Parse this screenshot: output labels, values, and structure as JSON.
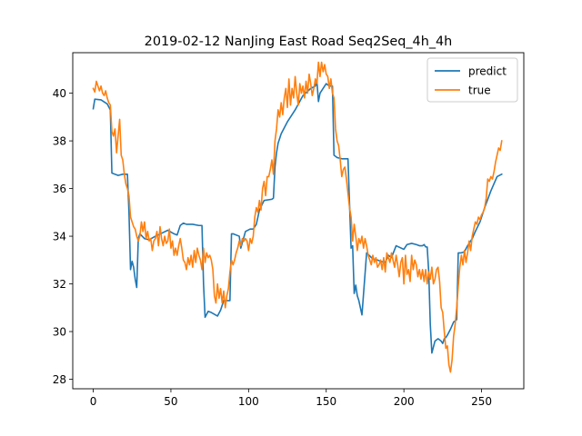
{
  "chart_data": {
    "type": "line",
    "title": "2019-02-12 NanJing East Road Seq2Seq_4h_4h",
    "xlabel": "",
    "ylabel": "",
    "xlim": [
      -13.2,
      277.2
    ],
    "ylim": [
      27.6,
      41.7
    ],
    "xticks": [
      0,
      50,
      100,
      150,
      200,
      250
    ],
    "yticks": [
      28,
      30,
      32,
      34,
      36,
      38,
      40
    ],
    "grid": false,
    "legend": "top-right",
    "series": [
      {
        "name": "predict",
        "color": "#1f77b4",
        "x": [
          0,
          1,
          5,
          9,
          11,
          12,
          16,
          19,
          22,
          23,
          24,
          25,
          26,
          27,
          28,
          29,
          30,
          33,
          36,
          40,
          48,
          52,
          54,
          56,
          58,
          60,
          64,
          68,
          70,
          71,
          72,
          74,
          76,
          80,
          82,
          84,
          86,
          88,
          89,
          90,
          94,
          95,
          98,
          101,
          103,
          105,
          107,
          110,
          115,
          116,
          117,
          118,
          119,
          121,
          125,
          130,
          135,
          140,
          143,
          144,
          145,
          146,
          148,
          150,
          152,
          154,
          155,
          156,
          157,
          160,
          164,
          166,
          167,
          168,
          169,
          170,
          171,
          172,
          173,
          176,
          180,
          183,
          185,
          188,
          190,
          192,
          195,
          200,
          202,
          205,
          208,
          210,
          212,
          213,
          214,
          215,
          216,
          217,
          218,
          220,
          222,
          224,
          225,
          226,
          227,
          228,
          230,
          232,
          233,
          234,
          235,
          237,
          239,
          241,
          244,
          246,
          249,
          252,
          256,
          260,
          263
        ],
        "y": [
          39.35,
          39.75,
          39.72,
          39.55,
          39.3,
          36.65,
          36.55,
          36.6,
          36.6,
          35.0,
          32.6,
          32.95,
          32.7,
          32.2,
          31.85,
          33.9,
          34.1,
          33.9,
          33.85,
          34.0,
          34.25,
          34.1,
          34.05,
          34.45,
          34.55,
          34.5,
          34.5,
          34.45,
          34.45,
          32.0,
          30.6,
          30.85,
          30.8,
          30.65,
          30.9,
          31.3,
          31.3,
          31.3,
          34.1,
          34.1,
          34.0,
          33.5,
          34.2,
          34.3,
          34.3,
          34.5,
          35.1,
          35.5,
          35.55,
          35.6,
          36.9,
          37.5,
          37.9,
          38.3,
          38.8,
          39.3,
          39.9,
          40.2,
          40.3,
          40.5,
          39.65,
          40.0,
          40.2,
          40.4,
          40.3,
          40.3,
          37.4,
          37.35,
          37.3,
          37.25,
          37.25,
          33.5,
          33.6,
          31.6,
          31.95,
          31.5,
          31.3,
          31.0,
          30.7,
          33.3,
          33.05,
          33.0,
          32.95,
          32.9,
          33.2,
          33.1,
          33.6,
          33.45,
          33.65,
          33.7,
          33.65,
          33.6,
          33.6,
          33.65,
          33.55,
          33.55,
          32.5,
          30.3,
          29.1,
          29.6,
          29.7,
          29.6,
          29.5,
          29.7,
          29.75,
          29.85,
          30.1,
          30.4,
          30.45,
          30.5,
          33.3,
          33.3,
          33.35,
          33.6,
          33.9,
          34.2,
          34.6,
          35.2,
          35.9,
          36.5,
          36.6
        ]
      },
      {
        "name": "true",
        "color": "#ff7f0e",
        "x": [
          0,
          1,
          2,
          3,
          4,
          5,
          6,
          7,
          8,
          9,
          10,
          11,
          12,
          13,
          14,
          15,
          16,
          17,
          18,
          19,
          20,
          21,
          22,
          23,
          24,
          25,
          26,
          27,
          28,
          29,
          30,
          31,
          32,
          33,
          34,
          35,
          36,
          37,
          38,
          39,
          40,
          41,
          42,
          43,
          44,
          45,
          46,
          47,
          48,
          49,
          50,
          51,
          52,
          53,
          54,
          55,
          56,
          57,
          58,
          59,
          60,
          61,
          62,
          63,
          64,
          65,
          66,
          67,
          68,
          69,
          70,
          71,
          72,
          73,
          74,
          75,
          76,
          77,
          78,
          79,
          80,
          81,
          82,
          83,
          84,
          85,
          86,
          87,
          88,
          89,
          90,
          91,
          92,
          93,
          94,
          95,
          96,
          97,
          98,
          99,
          100,
          101,
          102,
          103,
          104,
          105,
          106,
          107,
          108,
          109,
          110,
          111,
          112,
          113,
          114,
          115,
          116,
          117,
          118,
          119,
          120,
          121,
          122,
          123,
          124,
          125,
          126,
          127,
          128,
          129,
          130,
          131,
          132,
          133,
          134,
          135,
          136,
          137,
          138,
          139,
          140,
          141,
          142,
          143,
          144,
          145,
          146,
          147,
          148,
          149,
          150,
          151,
          152,
          153,
          154,
          155,
          156,
          157,
          158,
          159,
          160,
          161,
          162,
          163,
          164,
          165,
          166,
          167,
          168,
          169,
          170,
          171,
          172,
          173,
          174,
          175,
          176,
          177,
          178,
          179,
          180,
          181,
          182,
          183,
          184,
          185,
          186,
          187,
          188,
          189,
          190,
          191,
          192,
          193,
          194,
          195,
          196,
          197,
          198,
          199,
          200,
          201,
          202,
          203,
          204,
          205,
          206,
          207,
          208,
          209,
          210,
          211,
          212,
          213,
          214,
          215,
          216,
          217,
          218,
          219,
          220,
          221,
          222,
          223,
          224,
          225,
          226,
          227,
          228,
          229,
          230,
          231,
          232,
          233,
          234,
          235,
          236,
          237,
          238,
          239,
          240,
          241,
          242,
          243,
          244,
          245,
          246,
          247,
          248,
          249,
          250,
          251,
          252,
          253,
          254,
          255,
          256,
          257,
          258,
          259,
          260,
          261,
          262,
          263
        ],
        "y": [
          40.2,
          40.05,
          40.5,
          40.3,
          40.1,
          40.3,
          40.0,
          39.9,
          40.1,
          39.8,
          39.6,
          39.5,
          38.4,
          38.2,
          38.5,
          37.5,
          38.2,
          38.9,
          37.4,
          37.2,
          36.6,
          36.2,
          36.0,
          35.7,
          34.8,
          34.6,
          34.4,
          34.3,
          34.0,
          33.8,
          34.0,
          34.6,
          34.2,
          34.6,
          33.9,
          34.2,
          33.8,
          33.9,
          33.4,
          33.8,
          33.9,
          34.2,
          33.6,
          34.4,
          33.9,
          33.6,
          34.0,
          33.7,
          33.8,
          34.3,
          33.5,
          33.8,
          33.2,
          33.5,
          33.2,
          33.6,
          33.9,
          33.5,
          33.0,
          32.9,
          32.6,
          33.1,
          32.8,
          33.2,
          32.7,
          33.4,
          32.9,
          33.5,
          33.2,
          33.0,
          32.6,
          33.5,
          32.9,
          33.3,
          33.1,
          33.2,
          33.0,
          32.6,
          31.5,
          31.2,
          32.0,
          31.4,
          31.8,
          31.2,
          31.7,
          31.0,
          31.5,
          31.8,
          32.5,
          33.0,
          32.8,
          33.0,
          33.3,
          33.5,
          33.8,
          33.6,
          33.9,
          33.8,
          33.9,
          33.8,
          33.4,
          33.9,
          33.7,
          34.0,
          34.8,
          35.2,
          35.0,
          35.5,
          35.1,
          36.0,
          36.3,
          35.7,
          36.5,
          36.5,
          36.8,
          37.2,
          36.6,
          38.0,
          38.5,
          39.3,
          39.0,
          39.6,
          39.1,
          39.8,
          40.2,
          39.4,
          40.6,
          39.5,
          40.2,
          39.8,
          40.7,
          40.0,
          39.5,
          40.4,
          40.0,
          40.3,
          39.8,
          40.5,
          40.0,
          40.8,
          40.4,
          39.9,
          40.2,
          40.6,
          40.4,
          41.3,
          40.7,
          41.3,
          40.9,
          41.2,
          40.8,
          40.7,
          40.2,
          40.6,
          40.0,
          39.8,
          38.5,
          38.0,
          37.8,
          37.2,
          36.5,
          36.8,
          36.9,
          36.4,
          35.8,
          35.2,
          34.8,
          33.8,
          34.5,
          34.0,
          33.4,
          33.9,
          33.7,
          34.0,
          33.5,
          33.9,
          33.6,
          33.2,
          33.0,
          32.8,
          33.2,
          32.9,
          33.1,
          32.7,
          32.8,
          33.0,
          32.6,
          33.1,
          32.5,
          33.3,
          33.1,
          32.9,
          33.3,
          33.0,
          32.7,
          33.2,
          32.8,
          32.3,
          32.9,
          33.1,
          32.0,
          33.2,
          32.4,
          32.6,
          32.1,
          33.2,
          32.6,
          33.0,
          32.8,
          32.3,
          32.6,
          32.2,
          32.6,
          32.1,
          32.6,
          32.0,
          32.5,
          32.2,
          32.7,
          32.0,
          32.2,
          32.6,
          32.7,
          32.1,
          31.0,
          30.8,
          30.0,
          29.3,
          29.4,
          28.6,
          28.3,
          28.8,
          29.8,
          30.3,
          31.0,
          31.9,
          32.7,
          33.2,
          32.8,
          33.4,
          32.9,
          33.3,
          33.8,
          33.4,
          34.0,
          34.3,
          34.6,
          34.5,
          34.8,
          34.7,
          34.9,
          35.0,
          35.2,
          35.6,
          36.4,
          36.3,
          36.5,
          36.4,
          36.7,
          37.1,
          37.4,
          37.7,
          37.6,
          38.0
        ]
      }
    ]
  }
}
